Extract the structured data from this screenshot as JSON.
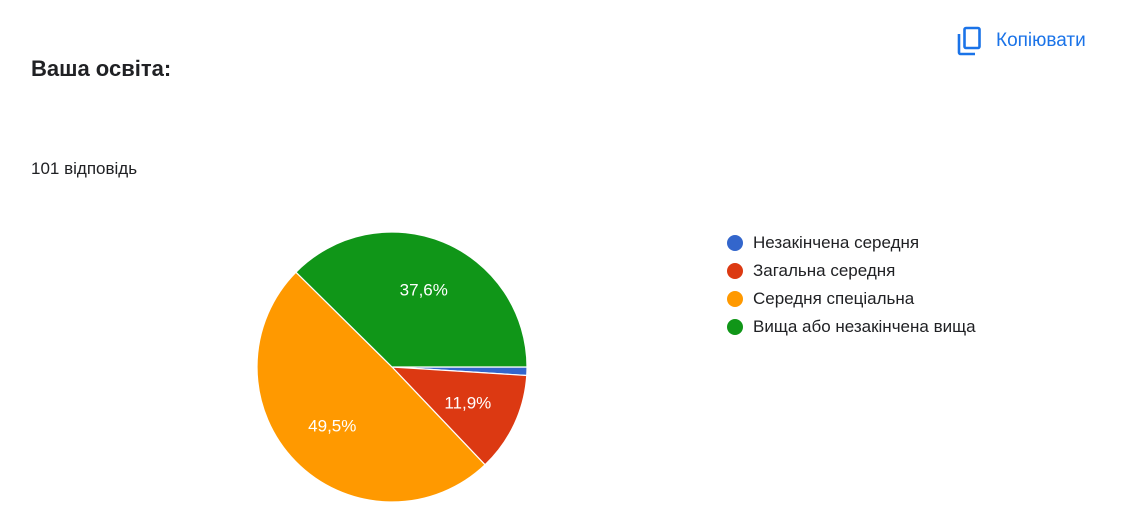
{
  "question": {
    "title": "Ваша освіта:",
    "responses": "101 відповідь"
  },
  "copy_button": {
    "label": "Копіювати",
    "icon": "copy-icon",
    "color": "#1a73e8"
  },
  "chart_data": {
    "type": "pie",
    "categories": [
      "Незакінчена середня",
      "Загальна середня",
      "Середня спеціальна",
      "Вища або незакінчена вища"
    ],
    "values": [
      1.0,
      11.9,
      49.5,
      37.6
    ],
    "data_labels": [
      "",
      "11,9%",
      "49,5%",
      "37,6%"
    ],
    "colors": [
      "#3366cc",
      "#dc3912",
      "#ff9900",
      "#109618"
    ],
    "legend_position": "right"
  }
}
